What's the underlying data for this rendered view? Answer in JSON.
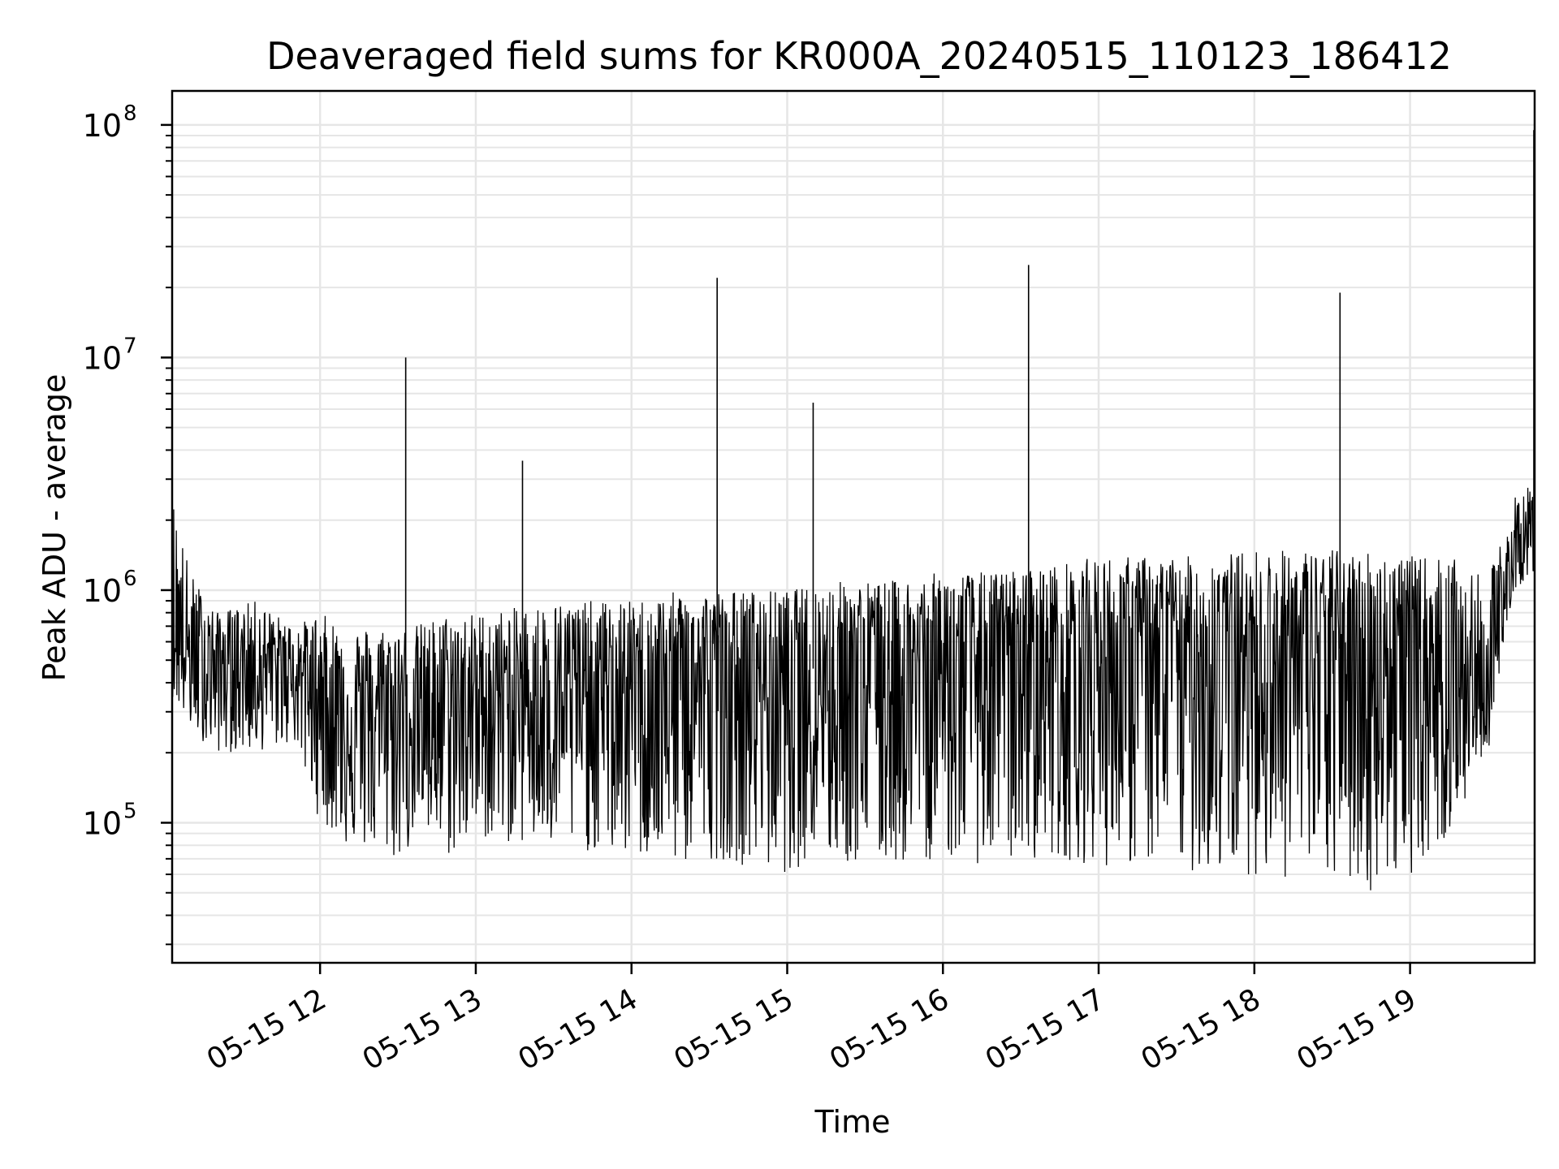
{
  "chart_data": {
    "type": "line",
    "title": "Deaveraged field sums for KR000A_20240515_110123_186412",
    "xlabel": "Time",
    "ylabel": "Peak ADU - average",
    "yscale": "log",
    "ylim": [
      25000,
      140000000
    ],
    "xlim": [
      "2024-05-15 11:03",
      "2024-05-15 19:48"
    ],
    "grid": true,
    "line_color": "#000000",
    "grid_color": "#e6e6e6",
    "x_ticks": [
      {
        "label": "05-15 12",
        "time": "2024-05-15 12:00"
      },
      {
        "label": "05-15 13",
        "time": "2024-05-15 13:00"
      },
      {
        "label": "05-15 14",
        "time": "2024-05-15 14:00"
      },
      {
        "label": "05-15 15",
        "time": "2024-05-15 15:00"
      },
      {
        "label": "05-15 16",
        "time": "2024-05-15 16:00"
      },
      {
        "label": "05-15 17",
        "time": "2024-05-15 17:00"
      },
      {
        "label": "05-15 18",
        "time": "2024-05-15 18:00"
      },
      {
        "label": "05-15 19",
        "time": "2024-05-15 19:00"
      }
    ],
    "y_ticks": [
      {
        "base": "10",
        "exp": "5",
        "value": 100000
      },
      {
        "base": "10",
        "exp": "6",
        "value": 1000000
      },
      {
        "base": "10",
        "exp": "7",
        "value": 10000000
      },
      {
        "base": "10",
        "exp": "8",
        "value": 100000000
      }
    ],
    "x": [
      "2024-05-15 11:03",
      "2024-05-15 11:10",
      "2024-05-15 11:20",
      "2024-05-15 11:35",
      "2024-05-15 11:50",
      "2024-05-15 12:00",
      "2024-05-15 12:10",
      "2024-05-15 12:20",
      "2024-05-15 12:33",
      "2024-05-15 12:35",
      "2024-05-15 12:50",
      "2024-05-15 13:00",
      "2024-05-15 13:18",
      "2024-05-15 13:30",
      "2024-05-15 13:45",
      "2024-05-15 14:00",
      "2024-05-15 14:20",
      "2024-05-15 14:33",
      "2024-05-15 14:45",
      "2024-05-15 15:00",
      "2024-05-15 15:10",
      "2024-05-15 15:20",
      "2024-05-15 15:40",
      "2024-05-15 16:00",
      "2024-05-15 16:20",
      "2024-05-15 16:33",
      "2024-05-15 16:45",
      "2024-05-15 17:00",
      "2024-05-15 17:20",
      "2024-05-15 17:40",
      "2024-05-15 18:00",
      "2024-05-15 18:20",
      "2024-05-15 18:33",
      "2024-05-15 18:45",
      "2024-05-15 19:00",
      "2024-05-15 19:15",
      "2024-05-15 19:30",
      "2024-05-15 19:40",
      "2024-05-15 19:48"
    ],
    "series": [
      {
        "upper": [
          2700000,
          1200000,
          800000,
          900000,
          700000,
          800000,
          700000,
          700000,
          10000000,
          700000,
          800000,
          800000,
          3600000,
          900000,
          900000,
          900000,
          1000000,
          22000000,
          1000000,
          1000000,
          6400000,
          1100000,
          1100000,
          1200000,
          1200000,
          25000000,
          1300000,
          1400000,
          1400000,
          1400000,
          1500000,
          1500000,
          19000000,
          1500000,
          1400000,
          1400000,
          1100000,
          2500000,
          95000000
        ],
        "lower": [
          350000,
          250000,
          200000,
          200000,
          220000,
          100000,
          80000,
          75000,
          65000,
          90000,
          70000,
          85000,
          80000,
          75000,
          75000,
          70000,
          65000,
          70000,
          65000,
          60000,
          70000,
          65000,
          65000,
          70000,
          65000,
          70000,
          70000,
          65000,
          65000,
          60000,
          60000,
          55000,
          55000,
          50000,
          60000,
          85000,
          200000,
          1000000,
          1200000
        ],
        "typical": [
          700000,
          500000,
          500000,
          500000,
          480000,
          380000,
          300000,
          300000,
          350000,
          320000,
          330000,
          350000,
          360000,
          370000,
          380000,
          400000,
          420000,
          450000,
          430000,
          450000,
          460000,
          470000,
          480000,
          500000,
          520000,
          560000,
          560000,
          560000,
          580000,
          590000,
          600000,
          580000,
          560000,
          550000,
          560000,
          450000,
          350000,
          1500000,
          1600000
        ]
      }
    ]
  }
}
